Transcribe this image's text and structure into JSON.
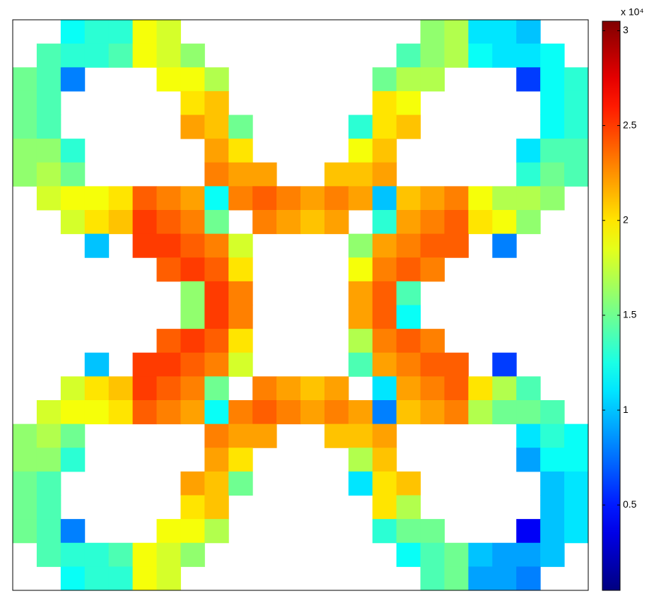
{
  "chart_data": {
    "type": "heatmap",
    "colormap": "jet",
    "clim": [
      0.05,
      3.05
    ],
    "colorbar_ticks": [
      0.5,
      1,
      1.5,
      2,
      2.5,
      3
    ],
    "colorbar_label": "x 10⁴",
    "z": [
      [
        null,
        null,
        1.2,
        1.3,
        1.3,
        1.9,
        1.8,
        null,
        null,
        null,
        null,
        null,
        null,
        null,
        null,
        null,
        null,
        1.6,
        1.7,
        1.1,
        1.1,
        1.0,
        null,
        null
      ],
      [
        null,
        1.4,
        1.3,
        1.3,
        1.4,
        1.9,
        1.8,
        1.6,
        null,
        null,
        null,
        null,
        null,
        null,
        null,
        null,
        1.4,
        1.6,
        1.7,
        1.2,
        1.1,
        1.1,
        1.2,
        null
      ],
      [
        1.5,
        1.4,
        0.8,
        null,
        null,
        null,
        1.9,
        1.9,
        1.7,
        null,
        null,
        null,
        null,
        null,
        null,
        1.5,
        1.7,
        1.7,
        null,
        null,
        null,
        0.6,
        1.2,
        1.3
      ],
      [
        1.5,
        1.4,
        null,
        null,
        null,
        null,
        null,
        2.0,
        2.1,
        null,
        null,
        null,
        null,
        null,
        null,
        2.0,
        1.9,
        null,
        null,
        null,
        null,
        null,
        1.2,
        1.3
      ],
      [
        1.5,
        1.4,
        null,
        null,
        null,
        null,
        null,
        2.2,
        2.1,
        1.5,
        null,
        null,
        null,
        null,
        1.3,
        2.0,
        2.1,
        null,
        null,
        null,
        null,
        null,
        1.2,
        1.3
      ],
      [
        1.6,
        1.6,
        1.3,
        null,
        null,
        null,
        null,
        null,
        2.2,
        2.0,
        null,
        null,
        null,
        null,
        1.9,
        2.1,
        null,
        null,
        null,
        null,
        null,
        1.1,
        1.4,
        1.4
      ],
      [
        1.6,
        1.7,
        1.5,
        null,
        null,
        null,
        null,
        null,
        2.3,
        2.2,
        2.2,
        null,
        null,
        2.1,
        2.1,
        2.2,
        null,
        null,
        null,
        null,
        null,
        1.3,
        1.5,
        1.4
      ],
      [
        null,
        1.8,
        1.9,
        1.9,
        2.0,
        2.4,
        2.3,
        2.2,
        1.2,
        2.3,
        2.4,
        2.3,
        2.2,
        2.3,
        2.2,
        1.0,
        2.1,
        2.2,
        2.3,
        1.9,
        1.7,
        1.7,
        1.6,
        null
      ],
      [
        null,
        null,
        1.8,
        2.0,
        2.1,
        2.5,
        2.4,
        2.3,
        1.5,
        null,
        2.3,
        2.2,
        2.1,
        2.2,
        null,
        1.3,
        2.2,
        2.3,
        2.4,
        2.0,
        1.9,
        1.6,
        null,
        null
      ],
      [
        null,
        null,
        null,
        1.0,
        null,
        2.5,
        2.5,
        2.4,
        2.3,
        1.8,
        null,
        null,
        null,
        null,
        1.6,
        2.2,
        2.3,
        2.4,
        2.4,
        null,
        0.8,
        null,
        null,
        null
      ],
      [
        null,
        null,
        null,
        null,
        null,
        null,
        2.4,
        2.5,
        2.4,
        2.0,
        null,
        null,
        null,
        null,
        1.9,
        2.3,
        2.4,
        2.3,
        null,
        null,
        null,
        null,
        null,
        null
      ],
      [
        null,
        null,
        null,
        null,
        null,
        null,
        null,
        1.6,
        2.5,
        2.3,
        null,
        null,
        null,
        null,
        2.2,
        2.4,
        1.4,
        null,
        null,
        null,
        null,
        null,
        null,
        null
      ],
      [
        null,
        null,
        null,
        null,
        null,
        null,
        null,
        1.6,
        2.5,
        2.3,
        null,
        null,
        null,
        null,
        2.2,
        2.4,
        1.2,
        null,
        null,
        null,
        null,
        null,
        null,
        null
      ],
      [
        null,
        null,
        null,
        null,
        null,
        null,
        2.4,
        2.5,
        2.4,
        2.0,
        null,
        null,
        null,
        null,
        1.7,
        2.3,
        2.4,
        2.3,
        null,
        null,
        null,
        null,
        null,
        null
      ],
      [
        null,
        null,
        null,
        1.0,
        null,
        2.5,
        2.5,
        2.4,
        2.3,
        1.8,
        null,
        null,
        null,
        null,
        1.4,
        2.2,
        2.3,
        2.4,
        2.4,
        null,
        0.6,
        null,
        null,
        null
      ],
      [
        null,
        null,
        1.8,
        2.0,
        2.1,
        2.5,
        2.4,
        2.3,
        1.5,
        null,
        2.3,
        2.2,
        2.1,
        2.2,
        null,
        1.1,
        2.2,
        2.3,
        2.4,
        2.0,
        1.7,
        1.4,
        null,
        null
      ],
      [
        null,
        1.8,
        1.9,
        1.9,
        2.0,
        2.4,
        2.3,
        2.2,
        1.2,
        2.3,
        2.4,
        2.3,
        2.2,
        2.3,
        2.2,
        0.8,
        2.1,
        2.2,
        2.3,
        1.7,
        1.5,
        1.5,
        1.4,
        null
      ],
      [
        1.6,
        1.7,
        1.5,
        null,
        null,
        null,
        null,
        null,
        2.3,
        2.2,
        2.2,
        null,
        null,
        2.1,
        2.1,
        2.2,
        null,
        null,
        null,
        null,
        null,
        1.1,
        1.3,
        1.2
      ],
      [
        1.6,
        1.6,
        1.3,
        null,
        null,
        null,
        null,
        null,
        2.2,
        2.0,
        null,
        null,
        null,
        null,
        1.7,
        2.1,
        null,
        null,
        null,
        null,
        null,
        0.9,
        1.2,
        1.2
      ],
      [
        1.5,
        1.4,
        null,
        null,
        null,
        null,
        null,
        2.2,
        2.1,
        1.5,
        null,
        null,
        null,
        null,
        1.1,
        2.0,
        2.1,
        null,
        null,
        null,
        null,
        null,
        1.0,
        1.1
      ],
      [
        1.5,
        1.4,
        null,
        null,
        null,
        null,
        null,
        2.0,
        2.1,
        null,
        null,
        null,
        null,
        null,
        null,
        2.0,
        1.7,
        null,
        null,
        null,
        null,
        null,
        1.0,
        1.1
      ],
      [
        1.5,
        1.4,
        0.8,
        null,
        null,
        null,
        1.9,
        1.9,
        1.7,
        null,
        null,
        null,
        null,
        null,
        null,
        1.3,
        1.5,
        1.5,
        null,
        null,
        null,
        0.4,
        1.0,
        1.1
      ],
      [
        null,
        1.4,
        1.3,
        1.3,
        1.4,
        1.9,
        1.8,
        1.6,
        null,
        null,
        null,
        null,
        null,
        null,
        null,
        null,
        1.2,
        1.4,
        1.5,
        1.0,
        0.9,
        0.9,
        1.0,
        null
      ],
      [
        null,
        null,
        1.2,
        1.3,
        1.3,
        1.9,
        1.8,
        null,
        null,
        null,
        null,
        null,
        null,
        null,
        null,
        null,
        null,
        1.4,
        1.5,
        0.9,
        0.9,
        0.8,
        null,
        null
      ]
    ]
  }
}
